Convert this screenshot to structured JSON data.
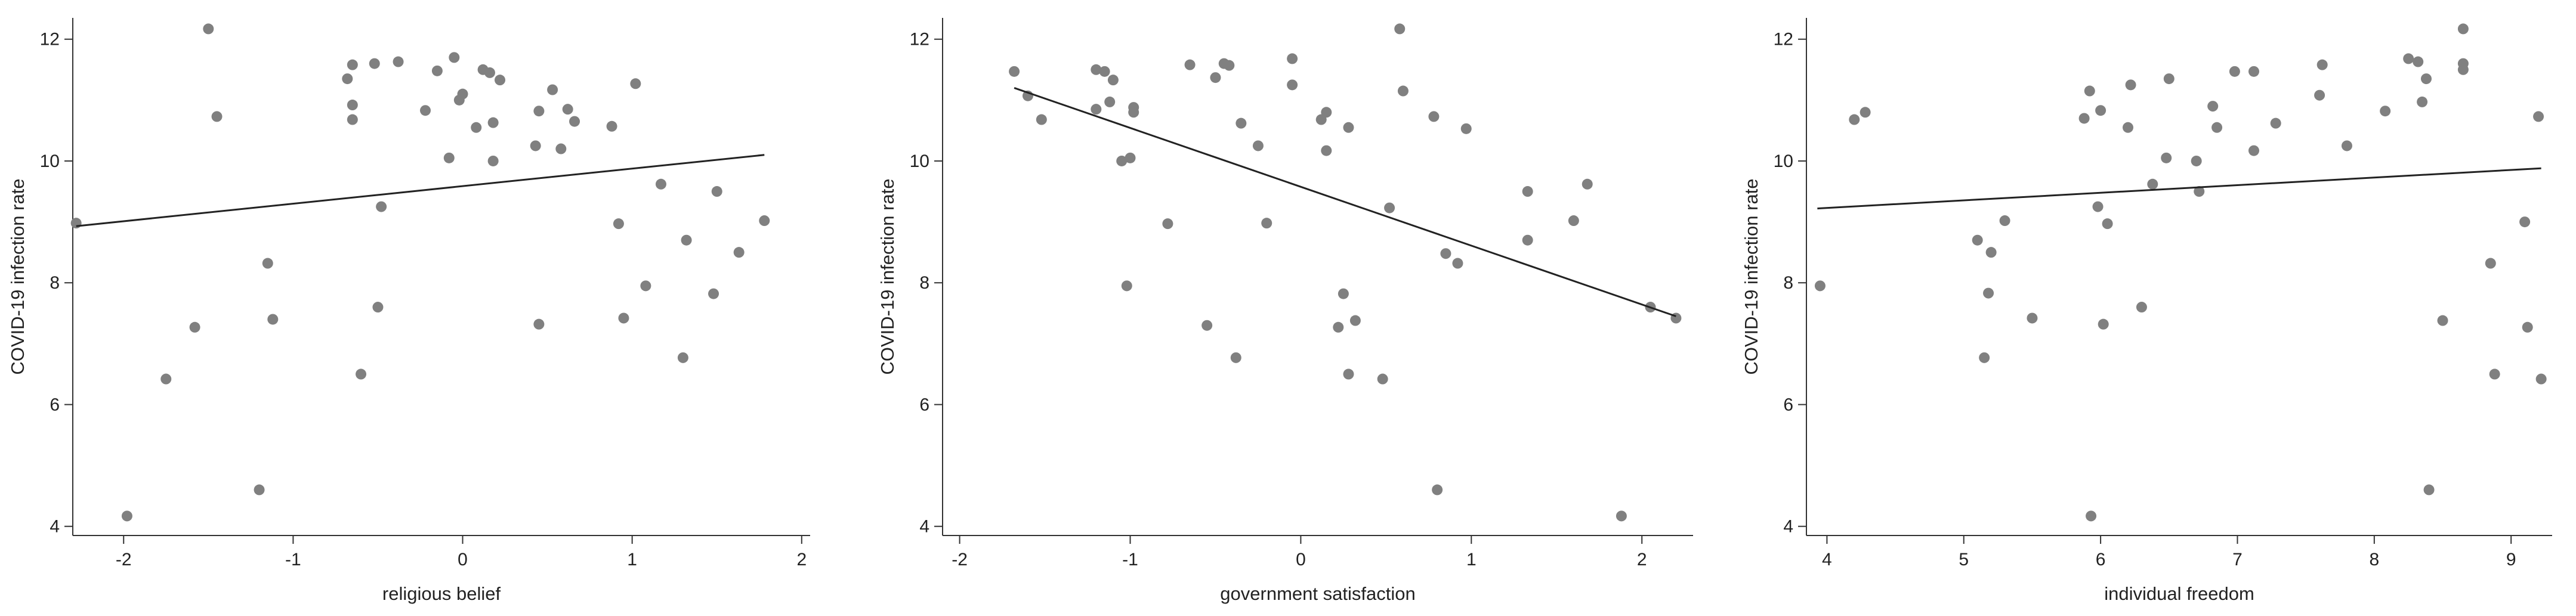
{
  "chart_data": [
    {
      "type": "scatter",
      "title": "",
      "xlabel": "religious belief",
      "ylabel": "COVID-19 infection rate",
      "xlim": [
        -2.3,
        2.05
      ],
      "ylim": [
        3.85,
        12.35
      ],
      "xticks": [
        -2,
        -1,
        0,
        1,
        2
      ],
      "yticks": [
        4,
        6,
        8,
        10,
        12
      ],
      "grid": false,
      "fit_line": {
        "x": [
          -2.28,
          1.78
        ],
        "y": [
          8.93,
          10.1
        ]
      },
      "points": [
        {
          "x": -2.28,
          "y": 8.98
        },
        {
          "x": -1.98,
          "y": 4.17
        },
        {
          "x": -1.75,
          "y": 6.42
        },
        {
          "x": -1.58,
          "y": 7.27
        },
        {
          "x": -1.5,
          "y": 12.17
        },
        {
          "x": -1.45,
          "y": 10.73
        },
        {
          "x": -1.2,
          "y": 4.6
        },
        {
          "x": -1.15,
          "y": 8.32
        },
        {
          "x": -1.12,
          "y": 7.4
        },
        {
          "x": -0.68,
          "y": 11.35
        },
        {
          "x": -0.65,
          "y": 11.58
        },
        {
          "x": -0.65,
          "y": 10.92
        },
        {
          "x": -0.65,
          "y": 10.68
        },
        {
          "x": -0.6,
          "y": 6.5
        },
        {
          "x": -0.52,
          "y": 11.6
        },
        {
          "x": -0.5,
          "y": 7.6
        },
        {
          "x": -0.48,
          "y": 9.25
        },
        {
          "x": -0.38,
          "y": 11.63
        },
        {
          "x": -0.22,
          "y": 10.83
        },
        {
          "x": -0.15,
          "y": 11.48
        },
        {
          "x": -0.08,
          "y": 10.05
        },
        {
          "x": -0.05,
          "y": 11.7
        },
        {
          "x": -0.02,
          "y": 11.0
        },
        {
          "x": 0.0,
          "y": 11.1
        },
        {
          "x": 0.08,
          "y": 10.55
        },
        {
          "x": 0.12,
          "y": 11.5
        },
        {
          "x": 0.16,
          "y": 11.45
        },
        {
          "x": 0.18,
          "y": 10.63
        },
        {
          "x": 0.18,
          "y": 10.0
        },
        {
          "x": 0.22,
          "y": 11.33
        },
        {
          "x": 0.43,
          "y": 10.25
        },
        {
          "x": 0.45,
          "y": 10.82
        },
        {
          "x": 0.45,
          "y": 7.32
        },
        {
          "x": 0.53,
          "y": 11.17
        },
        {
          "x": 0.58,
          "y": 10.2
        },
        {
          "x": 0.62,
          "y": 10.85
        },
        {
          "x": 0.66,
          "y": 10.65
        },
        {
          "x": 0.88,
          "y": 10.57
        },
        {
          "x": 0.92,
          "y": 8.97
        },
        {
          "x": 0.95,
          "y": 7.42
        },
        {
          "x": 1.02,
          "y": 11.27
        },
        {
          "x": 1.08,
          "y": 7.95
        },
        {
          "x": 1.17,
          "y": 9.62
        },
        {
          "x": 1.3,
          "y": 6.77
        },
        {
          "x": 1.32,
          "y": 8.7
        },
        {
          "x": 1.48,
          "y": 7.82
        },
        {
          "x": 1.5,
          "y": 9.5
        },
        {
          "x": 1.63,
          "y": 8.5
        },
        {
          "x": 1.78,
          "y": 9.02
        }
      ]
    },
    {
      "type": "scatter",
      "title": "",
      "xlabel": "government satisfaction",
      "ylabel": "COVID-19 infection rate",
      "xlim": [
        -2.1,
        2.3
      ],
      "ylim": [
        3.85,
        12.35
      ],
      "xticks": [
        -2,
        -1,
        0,
        1,
        2
      ],
      "yticks": [
        4,
        6,
        8,
        10,
        12
      ],
      "grid": false,
      "fit_line": {
        "x": [
          -1.68,
          2.2
        ],
        "y": [
          11.2,
          7.45
        ]
      },
      "points": [
        {
          "x": -1.68,
          "y": 11.47
        },
        {
          "x": -1.6,
          "y": 11.07
        },
        {
          "x": -1.52,
          "y": 10.68
        },
        {
          "x": -1.2,
          "y": 11.5
        },
        {
          "x": -1.2,
          "y": 10.85
        },
        {
          "x": -1.15,
          "y": 11.47
        },
        {
          "x": -1.12,
          "y": 10.97
        },
        {
          "x": -1.1,
          "y": 11.33
        },
        {
          "x": -1.05,
          "y": 10.0
        },
        {
          "x": -1.02,
          "y": 7.95
        },
        {
          "x": -1.0,
          "y": 10.05
        },
        {
          "x": -0.98,
          "y": 10.88
        },
        {
          "x": -0.98,
          "y": 10.8
        },
        {
          "x": -0.78,
          "y": 8.97
        },
        {
          "x": -0.65,
          "y": 11.58
        },
        {
          "x": -0.55,
          "y": 7.3
        },
        {
          "x": -0.5,
          "y": 11.37
        },
        {
          "x": -0.45,
          "y": 11.6
        },
        {
          "x": -0.42,
          "y": 11.57
        },
        {
          "x": -0.38,
          "y": 6.77
        },
        {
          "x": -0.35,
          "y": 10.62
        },
        {
          "x": -0.25,
          "y": 10.25
        },
        {
          "x": -0.2,
          "y": 8.98
        },
        {
          "x": -0.05,
          "y": 11.68
        },
        {
          "x": -0.05,
          "y": 11.25
        },
        {
          "x": 0.12,
          "y": 10.68
        },
        {
          "x": 0.15,
          "y": 10.8
        },
        {
          "x": 0.15,
          "y": 10.17
        },
        {
          "x": 0.22,
          "y": 7.27
        },
        {
          "x": 0.25,
          "y": 7.82
        },
        {
          "x": 0.28,
          "y": 6.5
        },
        {
          "x": 0.28,
          "y": 10.55
        },
        {
          "x": 0.32,
          "y": 7.38
        },
        {
          "x": 0.48,
          "y": 6.42
        },
        {
          "x": 0.52,
          "y": 9.23
        },
        {
          "x": 0.58,
          "y": 12.17
        },
        {
          "x": 0.6,
          "y": 11.15
        },
        {
          "x": 0.78,
          "y": 10.73
        },
        {
          "x": 0.8,
          "y": 4.6
        },
        {
          "x": 0.85,
          "y": 8.48
        },
        {
          "x": 0.92,
          "y": 8.32
        },
        {
          "x": 0.97,
          "y": 10.53
        },
        {
          "x": 1.33,
          "y": 9.5
        },
        {
          "x": 1.33,
          "y": 8.7
        },
        {
          "x": 1.6,
          "y": 9.02
        },
        {
          "x": 1.68,
          "y": 9.62
        },
        {
          "x": 1.88,
          "y": 4.17
        },
        {
          "x": 2.05,
          "y": 7.6
        },
        {
          "x": 2.2,
          "y": 7.42
        }
      ]
    },
    {
      "type": "scatter",
      "title": "",
      "xlabel": "individual freedom",
      "ylabel": "COVID-19 infection rate",
      "xlim": [
        3.85,
        9.3
      ],
      "ylim": [
        3.85,
        12.35
      ],
      "xticks": [
        4,
        5,
        6,
        7,
        8,
        9
      ],
      "yticks": [
        4,
        6,
        8,
        10,
        12
      ],
      "grid": false,
      "fit_line": {
        "x": [
          3.93,
          9.22
        ],
        "y": [
          9.22,
          9.88
        ]
      },
      "points": [
        {
          "x": 3.95,
          "y": 7.95
        },
        {
          "x": 4.2,
          "y": 10.68
        },
        {
          "x": 4.28,
          "y": 10.8
        },
        {
          "x": 5.1,
          "y": 8.7
        },
        {
          "x": 5.15,
          "y": 6.77
        },
        {
          "x": 5.18,
          "y": 7.83
        },
        {
          "x": 5.2,
          "y": 8.5
        },
        {
          "x": 5.3,
          "y": 9.02
        },
        {
          "x": 5.5,
          "y": 7.42
        },
        {
          "x": 5.88,
          "y": 10.7
        },
        {
          "x": 5.92,
          "y": 11.15
        },
        {
          "x": 5.93,
          "y": 4.17
        },
        {
          "x": 5.98,
          "y": 9.25
        },
        {
          "x": 6.0,
          "y": 10.83
        },
        {
          "x": 6.02,
          "y": 7.32
        },
        {
          "x": 6.05,
          "y": 8.97
        },
        {
          "x": 6.2,
          "y": 10.55
        },
        {
          "x": 6.22,
          "y": 11.25
        },
        {
          "x": 6.3,
          "y": 7.6
        },
        {
          "x": 6.38,
          "y": 9.62
        },
        {
          "x": 6.48,
          "y": 10.05
        },
        {
          "x": 6.5,
          "y": 11.35
        },
        {
          "x": 6.7,
          "y": 10.0
        },
        {
          "x": 6.72,
          "y": 9.5
        },
        {
          "x": 6.82,
          "y": 10.9
        },
        {
          "x": 6.85,
          "y": 10.55
        },
        {
          "x": 6.98,
          "y": 11.47
        },
        {
          "x": 7.12,
          "y": 10.17
        },
        {
          "x": 7.12,
          "y": 11.47
        },
        {
          "x": 7.28,
          "y": 10.62
        },
        {
          "x": 7.6,
          "y": 11.08
        },
        {
          "x": 7.62,
          "y": 11.58
        },
        {
          "x": 7.8,
          "y": 10.25
        },
        {
          "x": 8.08,
          "y": 10.82
        },
        {
          "x": 8.25,
          "y": 11.68
        },
        {
          "x": 8.32,
          "y": 11.63
        },
        {
          "x": 8.35,
          "y": 10.97
        },
        {
          "x": 8.38,
          "y": 11.35
        },
        {
          "x": 8.4,
          "y": 4.6
        },
        {
          "x": 8.5,
          "y": 7.38
        },
        {
          "x": 8.65,
          "y": 12.17
        },
        {
          "x": 8.65,
          "y": 11.6
        },
        {
          "x": 8.65,
          "y": 11.5
        },
        {
          "x": 8.85,
          "y": 8.32
        },
        {
          "x": 8.88,
          "y": 6.5
        },
        {
          "x": 9.1,
          "y": 9.0
        },
        {
          "x": 9.12,
          "y": 7.27
        },
        {
          "x": 9.2,
          "y": 10.73
        },
        {
          "x": 9.22,
          "y": 6.42
        }
      ]
    }
  ],
  "colors": {
    "point": "#808080",
    "line": "#222222",
    "axis": "#333333"
  }
}
